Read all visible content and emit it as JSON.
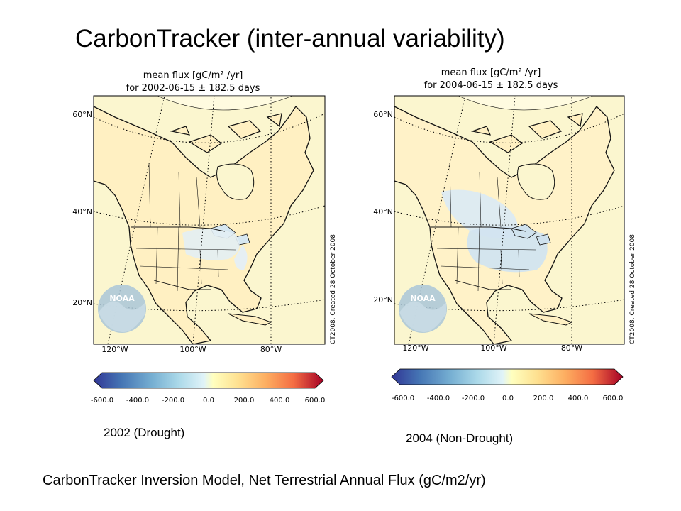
{
  "slide": {
    "title": "CarbonTracker (inter-annual variability)",
    "footer": "CarbonTracker Inversion Model, Net Terrestrial Annual Flux (gC/m2/yr)"
  },
  "maps": [
    {
      "title_line1": "mean flux [gC/m² /yr]",
      "title_line2": "for 2002-06-15 ± 182.5 days",
      "lat_ticks": [
        "60°N",
        "40°N",
        "20°N"
      ],
      "lon_ticks": [
        "120°W",
        "100°W",
        "80°W"
      ],
      "credit": "CT2008.  Created 28 October 2008",
      "logo_text": "NOAA",
      "colorbar_ticks": [
        "-600.0",
        "-400.0",
        "-200.0",
        "0.0",
        "200.0",
        "400.0",
        "600.0"
      ],
      "label": "2002 (Drought)"
    },
    {
      "title_line1": "mean flux [gC/m² /yr]",
      "title_line2": "for 2004-06-15 ± 182.5 days",
      "lat_ticks": [
        "60°N",
        "40°N",
        "20°N"
      ],
      "lon_ticks": [
        "120°W",
        "100°W",
        "80°W"
      ],
      "credit": "CT2008.  Created 28 October 2008",
      "logo_text": "NOAA",
      "colorbar_ticks": [
        "-600.0",
        "-400.0",
        "-200.0",
        "0.0",
        "200.0",
        "400.0",
        "600.0"
      ],
      "label": "2004 (Non-Drought)"
    }
  ],
  "colors": {
    "ocean": "#fbf6cf",
    "land_base": "#fff0c2",
    "uptake": "#dcecf5",
    "outline": "#111111",
    "colorbar": [
      "#313695",
      "#4575b4",
      "#74add1",
      "#abd9e9",
      "#e0f3f8",
      "#fee090",
      "#fdae61",
      "#f46d43",
      "#d73027",
      "#a50026"
    ]
  }
}
